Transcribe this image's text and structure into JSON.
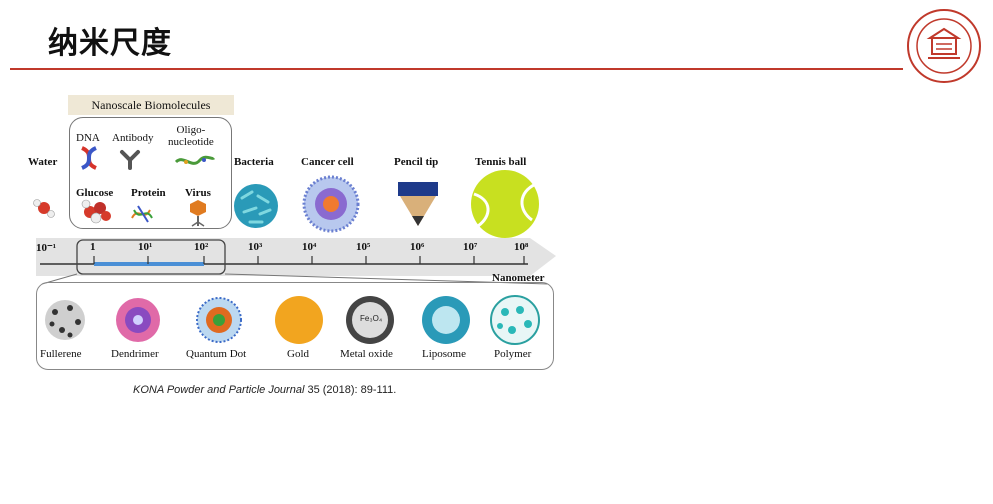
{
  "title": "纳米尺度",
  "group_label": "Nanoscale Biomolecules",
  "items_top": {
    "water": "Water",
    "dna": "DNA",
    "antibody": "Antibody",
    "oligo": "Oligo-\nnucleotide",
    "glucose": "Glucose",
    "protein": "Protein",
    "virus": "Virus",
    "bacteria": "Bacteria",
    "cancer_cell": "Cancer cell",
    "pencil_tip": "Pencil tip",
    "tennis_ball": "Tennis ball"
  },
  "scale": {
    "ticks": [
      "10⁻¹",
      "1",
      "10¹",
      "10²",
      "10³",
      "10⁴",
      "10⁵",
      "10⁶",
      "10⁷",
      "10⁸"
    ],
    "unit": "Nanometer"
  },
  "items_bottom": [
    "Fullerene",
    "Dendrimer",
    "Quantum Dot",
    "Gold",
    "Metal oxide",
    "Liposome",
    "Polymer"
  ],
  "fe3o4": "Fe₃O₄",
  "citation": {
    "journal": "KONA Powder and Particle Journal",
    "rest": " 35 (2018): 89-111."
  },
  "colors": {
    "accent_red": "#c0392b",
    "tennis": "#c8e020",
    "gold": "#f2a51f",
    "scale_highlight": "#4a8fd6"
  }
}
